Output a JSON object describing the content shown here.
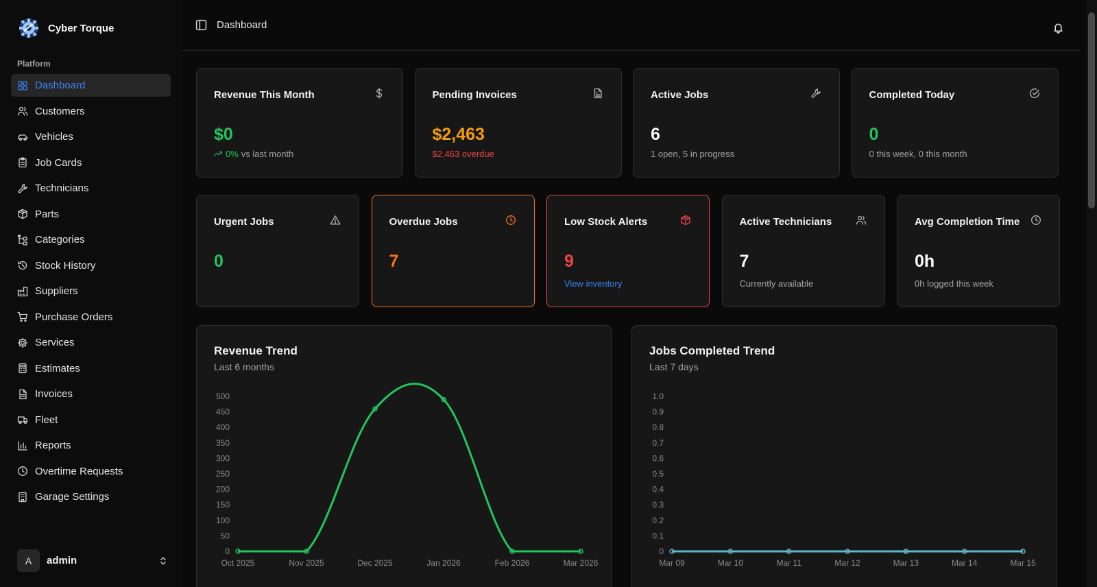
{
  "brand": {
    "name": "Cyber Torque"
  },
  "sidebar": {
    "section": "Platform",
    "items": [
      {
        "label": "Dashboard",
        "icon": "dashboard-icon",
        "active": true
      },
      {
        "label": "Customers",
        "icon": "users-icon"
      },
      {
        "label": "Vehicles",
        "icon": "car-icon"
      },
      {
        "label": "Job Cards",
        "icon": "clipboard-icon"
      },
      {
        "label": "Technicians",
        "icon": "wrench-icon"
      },
      {
        "label": "Parts",
        "icon": "package-icon"
      },
      {
        "label": "Categories",
        "icon": "tree-icon"
      },
      {
        "label": "Stock History",
        "icon": "history-icon"
      },
      {
        "label": "Suppliers",
        "icon": "factory-icon"
      },
      {
        "label": "Purchase Orders",
        "icon": "cart-icon"
      },
      {
        "label": "Services",
        "icon": "gear-icon"
      },
      {
        "label": "Estimates",
        "icon": "calculator-icon"
      },
      {
        "label": "Invoices",
        "icon": "file-icon"
      },
      {
        "label": "Fleet",
        "icon": "truck-icon"
      },
      {
        "label": "Reports",
        "icon": "bar-chart-icon"
      },
      {
        "label": "Overtime Requests",
        "icon": "clock-icon"
      },
      {
        "label": "Garage Settings",
        "icon": "building-icon"
      }
    ],
    "user": {
      "initial": "A",
      "name": "admin"
    }
  },
  "header": {
    "title": "Dashboard"
  },
  "stats_row1": [
    {
      "title": "Revenue This Month",
      "icon": "dollar-icon",
      "value": "$0",
      "value_color": "green",
      "trend": "0%",
      "sub": "vs last month"
    },
    {
      "title": "Pending Invoices",
      "icon": "file-text-icon",
      "value": "$2,463",
      "value_color": "amber",
      "sub": "$2,463 overdue"
    },
    {
      "title": "Active Jobs",
      "icon": "wrench-icon",
      "value": "6",
      "value_color": "white",
      "sub": "1 open, 5 in progress"
    },
    {
      "title": "Completed Today",
      "icon": "check-circle-icon",
      "value": "0",
      "value_color": "green",
      "sub": "0 this week, 0 this month"
    }
  ],
  "stats_row2": [
    {
      "title": "Urgent Jobs",
      "icon": "alert-triangle-icon",
      "value": "0",
      "value_color": "green",
      "sub": ""
    },
    {
      "title": "Overdue Jobs",
      "icon": "clock-icon",
      "value": "7",
      "value_color": "orange",
      "sub": ""
    },
    {
      "title": "Low Stock Alerts",
      "icon": "box-icon",
      "value": "9",
      "value_color": "red",
      "link": "View inventory"
    },
    {
      "title": "Active Technicians",
      "icon": "users-icon",
      "value": "7",
      "value_color": "white",
      "sub": "Currently available"
    },
    {
      "title": "Avg Completion Time",
      "icon": "clock-icon",
      "value": "0h",
      "value_color": "white",
      "sub": "0h logged this week"
    }
  ],
  "chart_data": [
    {
      "type": "line",
      "title": "Revenue Trend",
      "subtitle": "Last 6 months",
      "categories": [
        "Oct 2025",
        "Nov 2025",
        "Dec 2025",
        "Jan 2026",
        "Feb 2026",
        "Mar 2026"
      ],
      "values": [
        0,
        0,
        460,
        490,
        0,
        0
      ],
      "ylim": [
        0,
        500
      ],
      "yticks": [
        0,
        50,
        100,
        150,
        200,
        250,
        300,
        350,
        400,
        450,
        500
      ],
      "color": "#22c55e"
    },
    {
      "type": "line",
      "title": "Jobs Completed Trend",
      "subtitle": "Last 7 days",
      "categories": [
        "Mar 09",
        "Mar 10",
        "Mar 11",
        "Mar 12",
        "Mar 13",
        "Mar 14",
        "Mar 15"
      ],
      "values": [
        0,
        0,
        0,
        0,
        0,
        0,
        0
      ],
      "ylim": [
        0,
        1
      ],
      "yticks": [
        "0",
        "0.1",
        "0.2",
        "0.3",
        "0.4",
        "0.5",
        "0.6",
        "0.7",
        "0.8",
        "0.9",
        "1.0"
      ],
      "color": "#5fb8c9"
    }
  ],
  "colors": {
    "green": "#22c55e",
    "amber": "#f59e0b",
    "red": "#ef4444",
    "orange": "#f97316",
    "blue": "#3b82f6",
    "overdue_border": "#f97316",
    "lowstock_border": "#ef4444"
  }
}
